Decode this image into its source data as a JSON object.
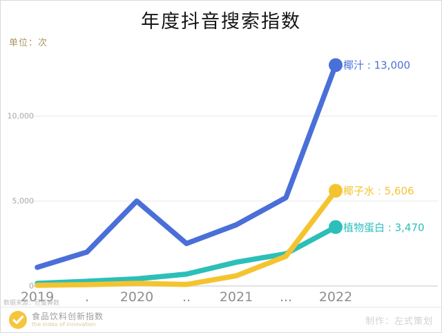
{
  "title": "年度抖音搜索指数",
  "unit_label": "单位：次",
  "source_note": "数据来源：巨量算数",
  "footer": {
    "brand": "食品饮料创新指数",
    "tagline": "the index of innovation",
    "credit": "制作：左式策划"
  },
  "colors": {
    "blue": "#4a6fd8",
    "yellow": "#f4c430",
    "teal": "#2cbfb9",
    "grid": "#efefef",
    "baseline": "#e2e2e2",
    "logo_yellow": "#f5c63c"
  },
  "chart_data": {
    "type": "line",
    "title": "年度抖音搜索指数",
    "xlabel": "",
    "ylabel": "单位：次",
    "categories": [
      "2019",
      ".",
      "2020",
      "..",
      "2021",
      "...",
      "2022"
    ],
    "yticks": [
      {
        "value": 0,
        "label": "0"
      },
      {
        "value": 5000,
        "label": "5,000"
      },
      {
        "value": 10000,
        "label": "10,000"
      }
    ],
    "ylim": [
      0,
      13500
    ],
    "grid": "horizontal",
    "legend_position": "line-end-labels",
    "series": [
      {
        "name": "椰汁",
        "color": "#4a6fd8",
        "values": [
          1100,
          2000,
          5000,
          2500,
          3600,
          5200,
          13000
        ],
        "final_value": "13,000",
        "end_label": "椰汁 : 13,000"
      },
      {
        "name": "植物蛋白",
        "color": "#2cbfb9",
        "values": [
          160,
          280,
          420,
          700,
          1400,
          1900,
          3470
        ],
        "final_value": "3,470",
        "end_label": "植物蛋白 : 3,470"
      },
      {
        "name": "椰子水",
        "color": "#f4c430",
        "values": [
          40,
          80,
          160,
          90,
          600,
          1750,
          5606
        ],
        "final_value": "5,606",
        "end_label": "椰子水 : 5,606"
      }
    ]
  }
}
